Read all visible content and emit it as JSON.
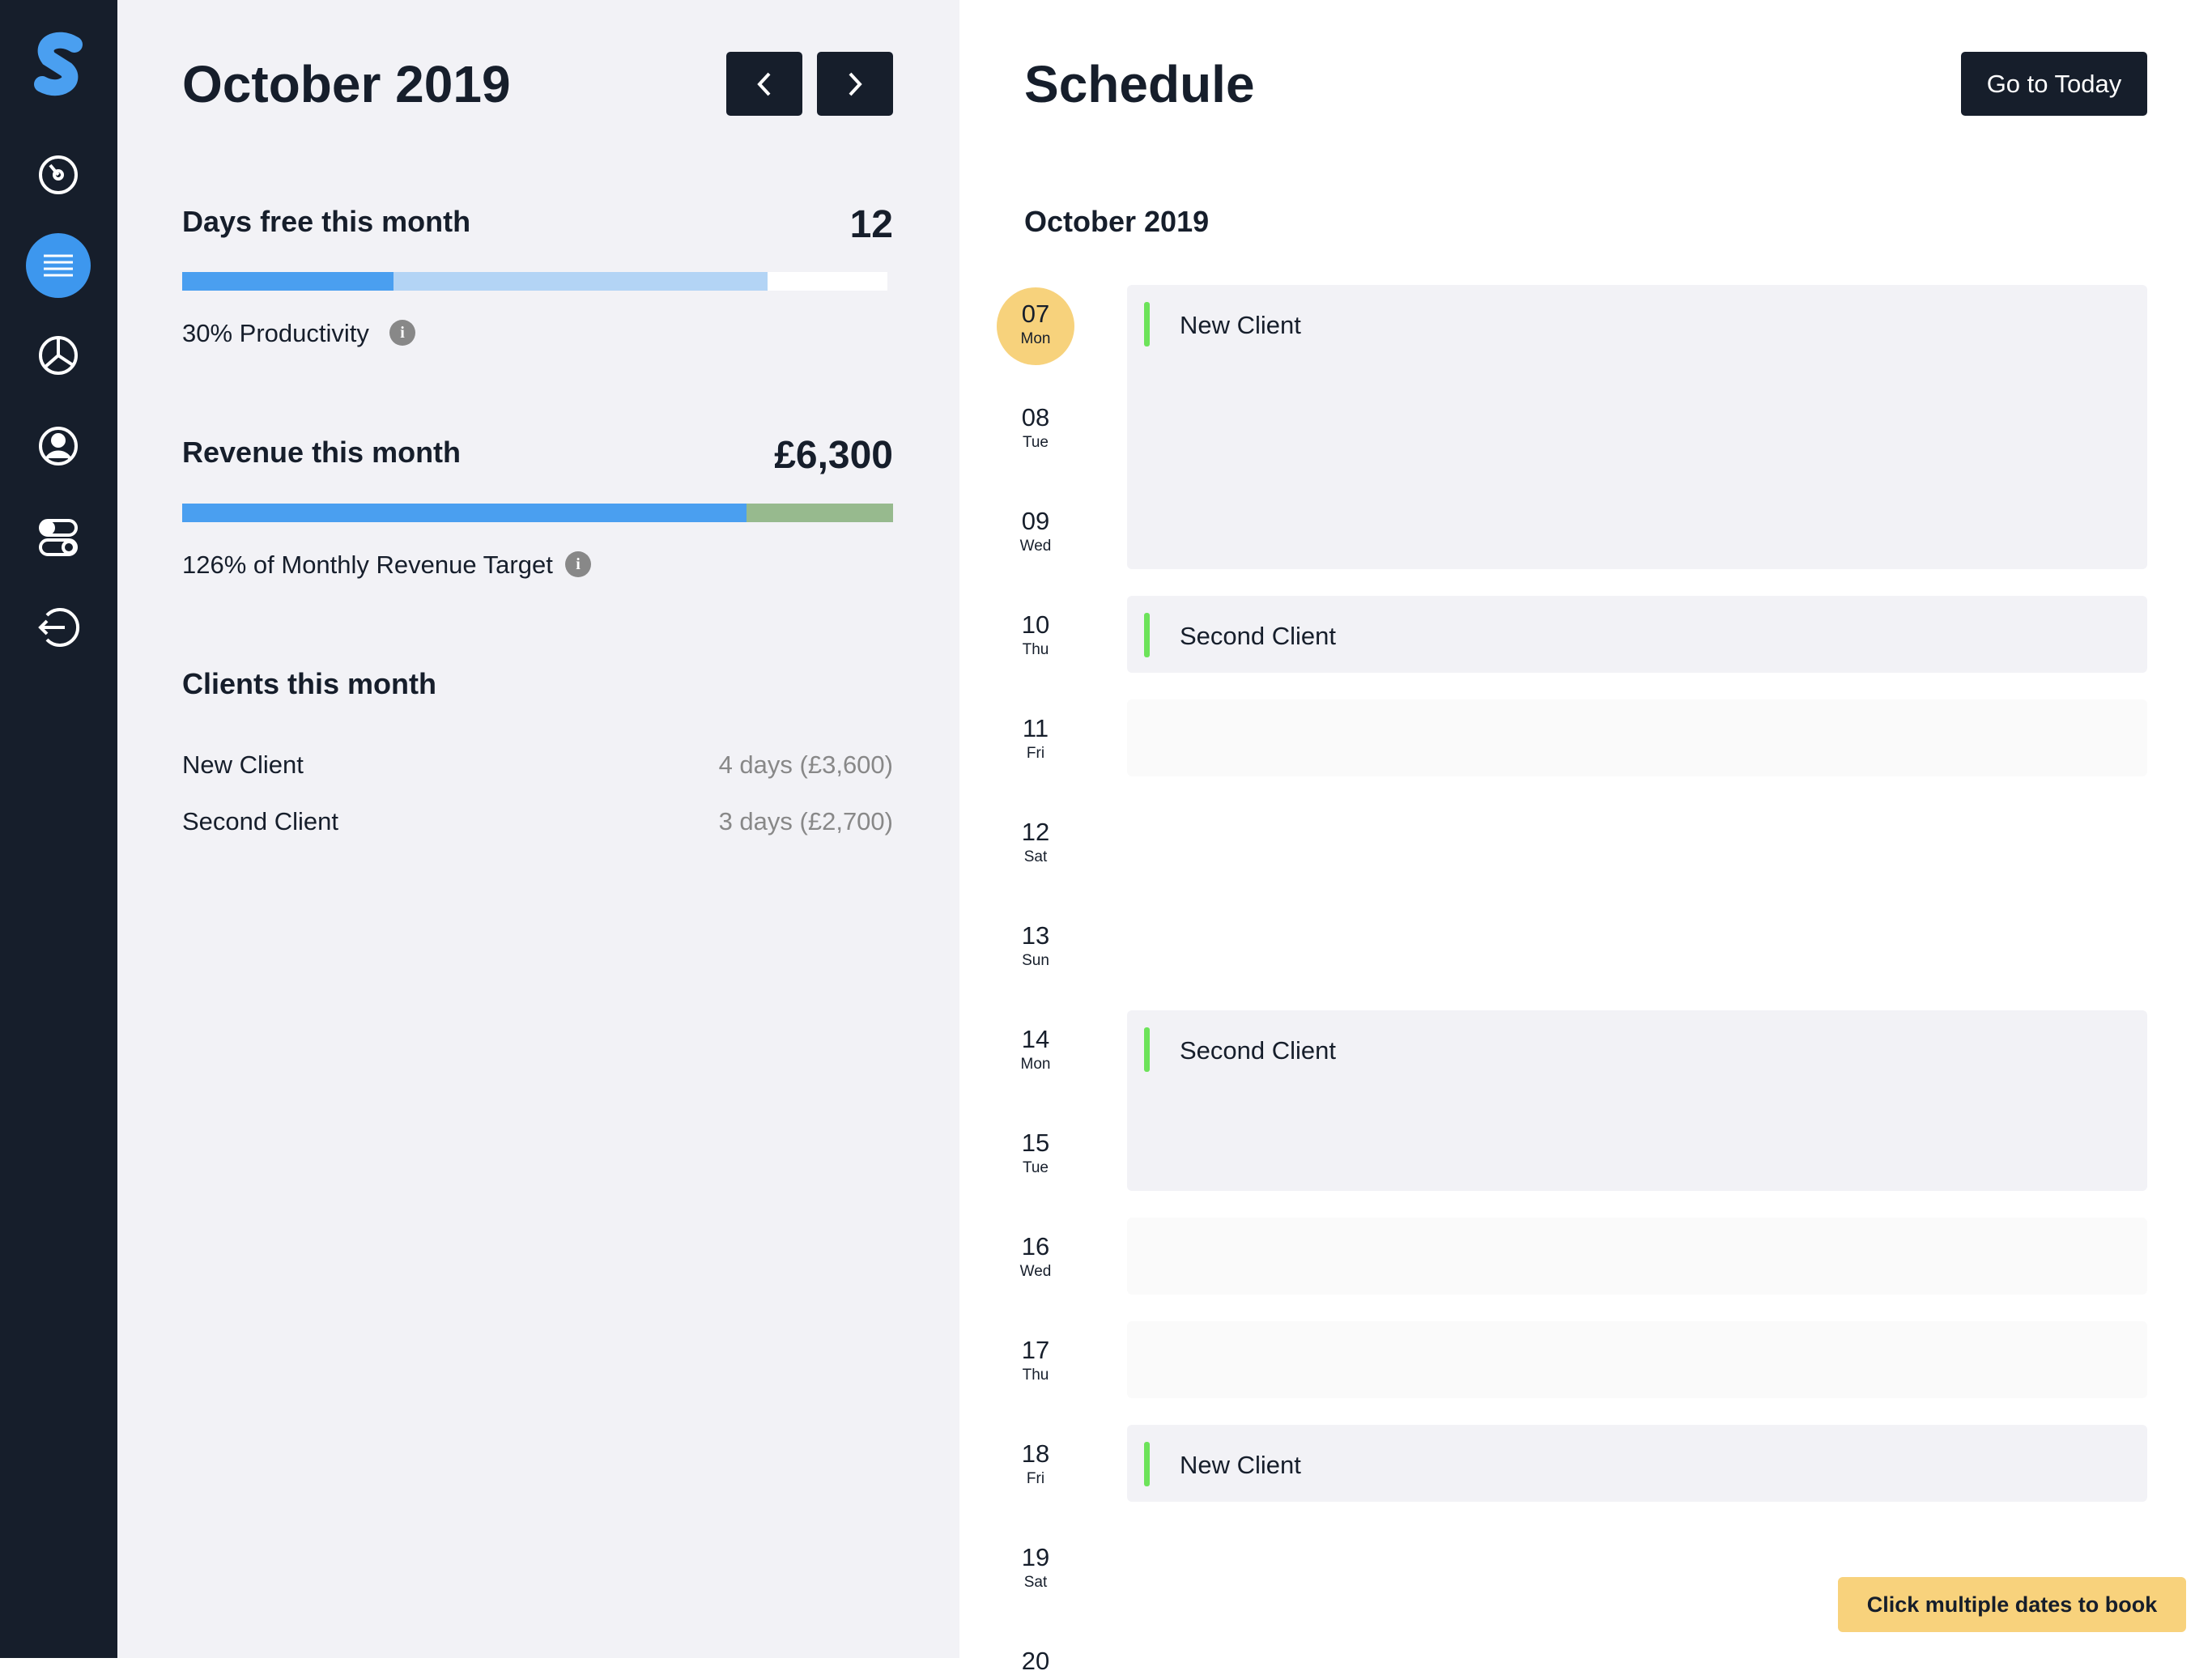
{
  "sidebar": {
    "active_item": 1
  },
  "summary": {
    "title": "October 2019",
    "days_free": {
      "label": "Days free this month",
      "value": "12",
      "caption": "30% Productivity",
      "bar": [
        30,
        53
      ],
      "bar_total": 100
    },
    "revenue": {
      "label": "Revenue this month",
      "value": "£6,300",
      "caption": "126% of Monthly Revenue Target",
      "bar": [
        100,
        26
      ],
      "bar_total": 126
    },
    "clients": {
      "title": "Clients this month",
      "rows": [
        {
          "name": "New Client",
          "detail": "4 days (£3,600)"
        },
        {
          "name": "Second Client",
          "detail": "3 days (£2,700)"
        }
      ]
    }
  },
  "schedule": {
    "title": "Schedule",
    "today_button": "Go to Today",
    "month": "October 2019",
    "today_index": 0,
    "days": [
      {
        "day": "07",
        "weekday": "Mon"
      },
      {
        "day": "08",
        "weekday": "Tue"
      },
      {
        "day": "09",
        "weekday": "Wed"
      },
      {
        "day": "10",
        "weekday": "Thu"
      },
      {
        "day": "11",
        "weekday": "Fri"
      },
      {
        "day": "12",
        "weekday": "Sat"
      },
      {
        "day": "13",
        "weekday": "Sun"
      },
      {
        "day": "14",
        "weekday": "Mon"
      },
      {
        "day": "15",
        "weekday": "Tue"
      },
      {
        "day": "16",
        "weekday": "Wed"
      },
      {
        "day": "17",
        "weekday": "Thu"
      },
      {
        "day": "18",
        "weekday": "Fri"
      },
      {
        "day": "19",
        "weekday": "Sat"
      },
      {
        "day": "20"
      }
    ],
    "blocks": [
      {
        "first": 0,
        "rows": 3,
        "client": "New Client"
      },
      {
        "first": 3,
        "rows": 1,
        "client": "Second Client"
      },
      {
        "first": 4,
        "rows": 1
      },
      {
        "first": 7,
        "rows": 2,
        "client": "Second Client"
      },
      {
        "first": 9,
        "rows": 1
      },
      {
        "first": 10,
        "rows": 1
      },
      {
        "first": 11,
        "rows": 1,
        "client": "New Client"
      }
    ]
  },
  "toast": "Click multiple dates to book"
}
